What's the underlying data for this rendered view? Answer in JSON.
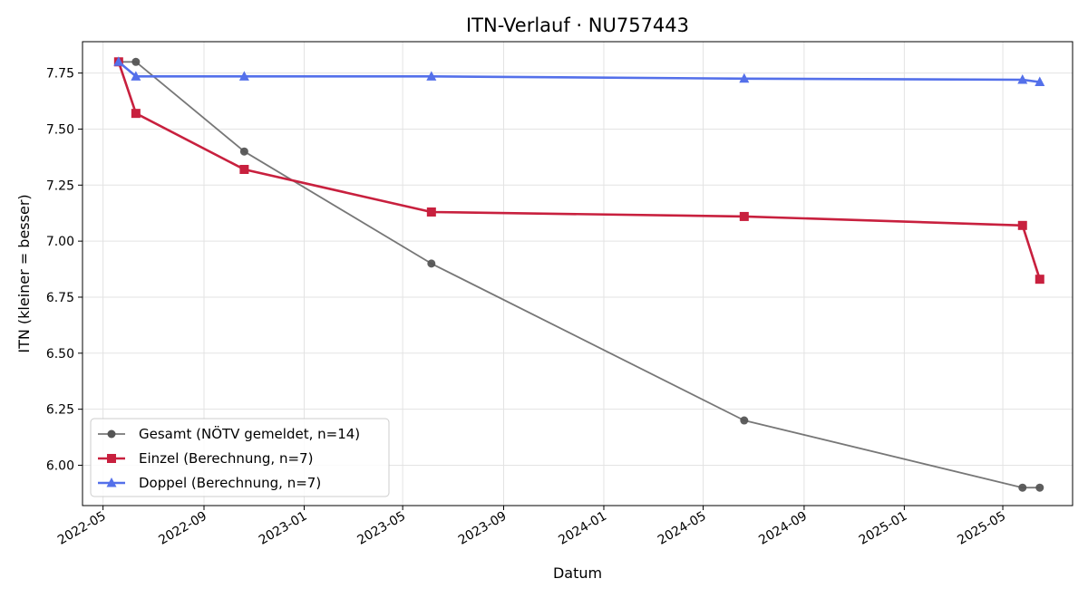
{
  "chart_data": {
    "type": "line",
    "title": "ITN-Verlauf · NU757443",
    "xlabel": "Datum",
    "ylabel": "ITN  (kleiner = besser)",
    "x_axis_type": "date",
    "xlim": [
      "2022-04-06",
      "2025-07-25"
    ],
    "ylim": [
      5.82,
      7.89
    ],
    "x_ticks": [
      "2022-05-01",
      "2022-09-01",
      "2023-01-01",
      "2023-05-01",
      "2023-09-01",
      "2024-01-01",
      "2024-05-01",
      "2024-09-01",
      "2025-01-01",
      "2025-05-01"
    ],
    "x_tick_labels": [
      "2022-05",
      "2022-09",
      "2023-01",
      "2023-05",
      "2023-09",
      "2024-01",
      "2024-05",
      "2024-09",
      "2025-01",
      "2025-05"
    ],
    "y_ticks": [
      6.0,
      6.25,
      6.5,
      6.75,
      7.0,
      7.25,
      7.5,
      7.75
    ],
    "y_tick_labels": [
      "6.00",
      "6.25",
      "6.50",
      "6.75",
      "7.00",
      "7.25",
      "7.50",
      "7.75"
    ],
    "grid": true,
    "legend_position": "lower-left",
    "series": [
      {
        "name": "Gesamt (NÖTV gemeldet, n=14)",
        "color": "#555555",
        "marker": "circle",
        "x": [
          "2022-05-20",
          "2022-06-10",
          "2022-10-20",
          "2023-06-05",
          "2024-06-20",
          "2025-05-25",
          "2025-06-15"
        ],
        "y": [
          7.8,
          7.8,
          7.4,
          6.9,
          6.2,
          5.9,
          5.9
        ]
      },
      {
        "name": "Einzel (Berechnung, n=7)",
        "color": "#c8203e",
        "marker": "square",
        "x": [
          "2022-05-20",
          "2022-06-10",
          "2022-10-20",
          "2023-06-05",
          "2024-06-20",
          "2025-05-25",
          "2025-06-15"
        ],
        "y": [
          7.8,
          7.57,
          7.32,
          7.13,
          7.11,
          7.07,
          6.83
        ]
      },
      {
        "name": "Doppel (Berechnung, n=7)",
        "color": "#5470ea",
        "marker": "triangle",
        "x": [
          "2022-05-20",
          "2022-06-10",
          "2022-10-20",
          "2023-06-05",
          "2024-06-20",
          "2025-05-25",
          "2025-06-15"
        ],
        "y": [
          7.8,
          7.735,
          7.735,
          7.735,
          7.725,
          7.72,
          7.71
        ]
      }
    ]
  }
}
